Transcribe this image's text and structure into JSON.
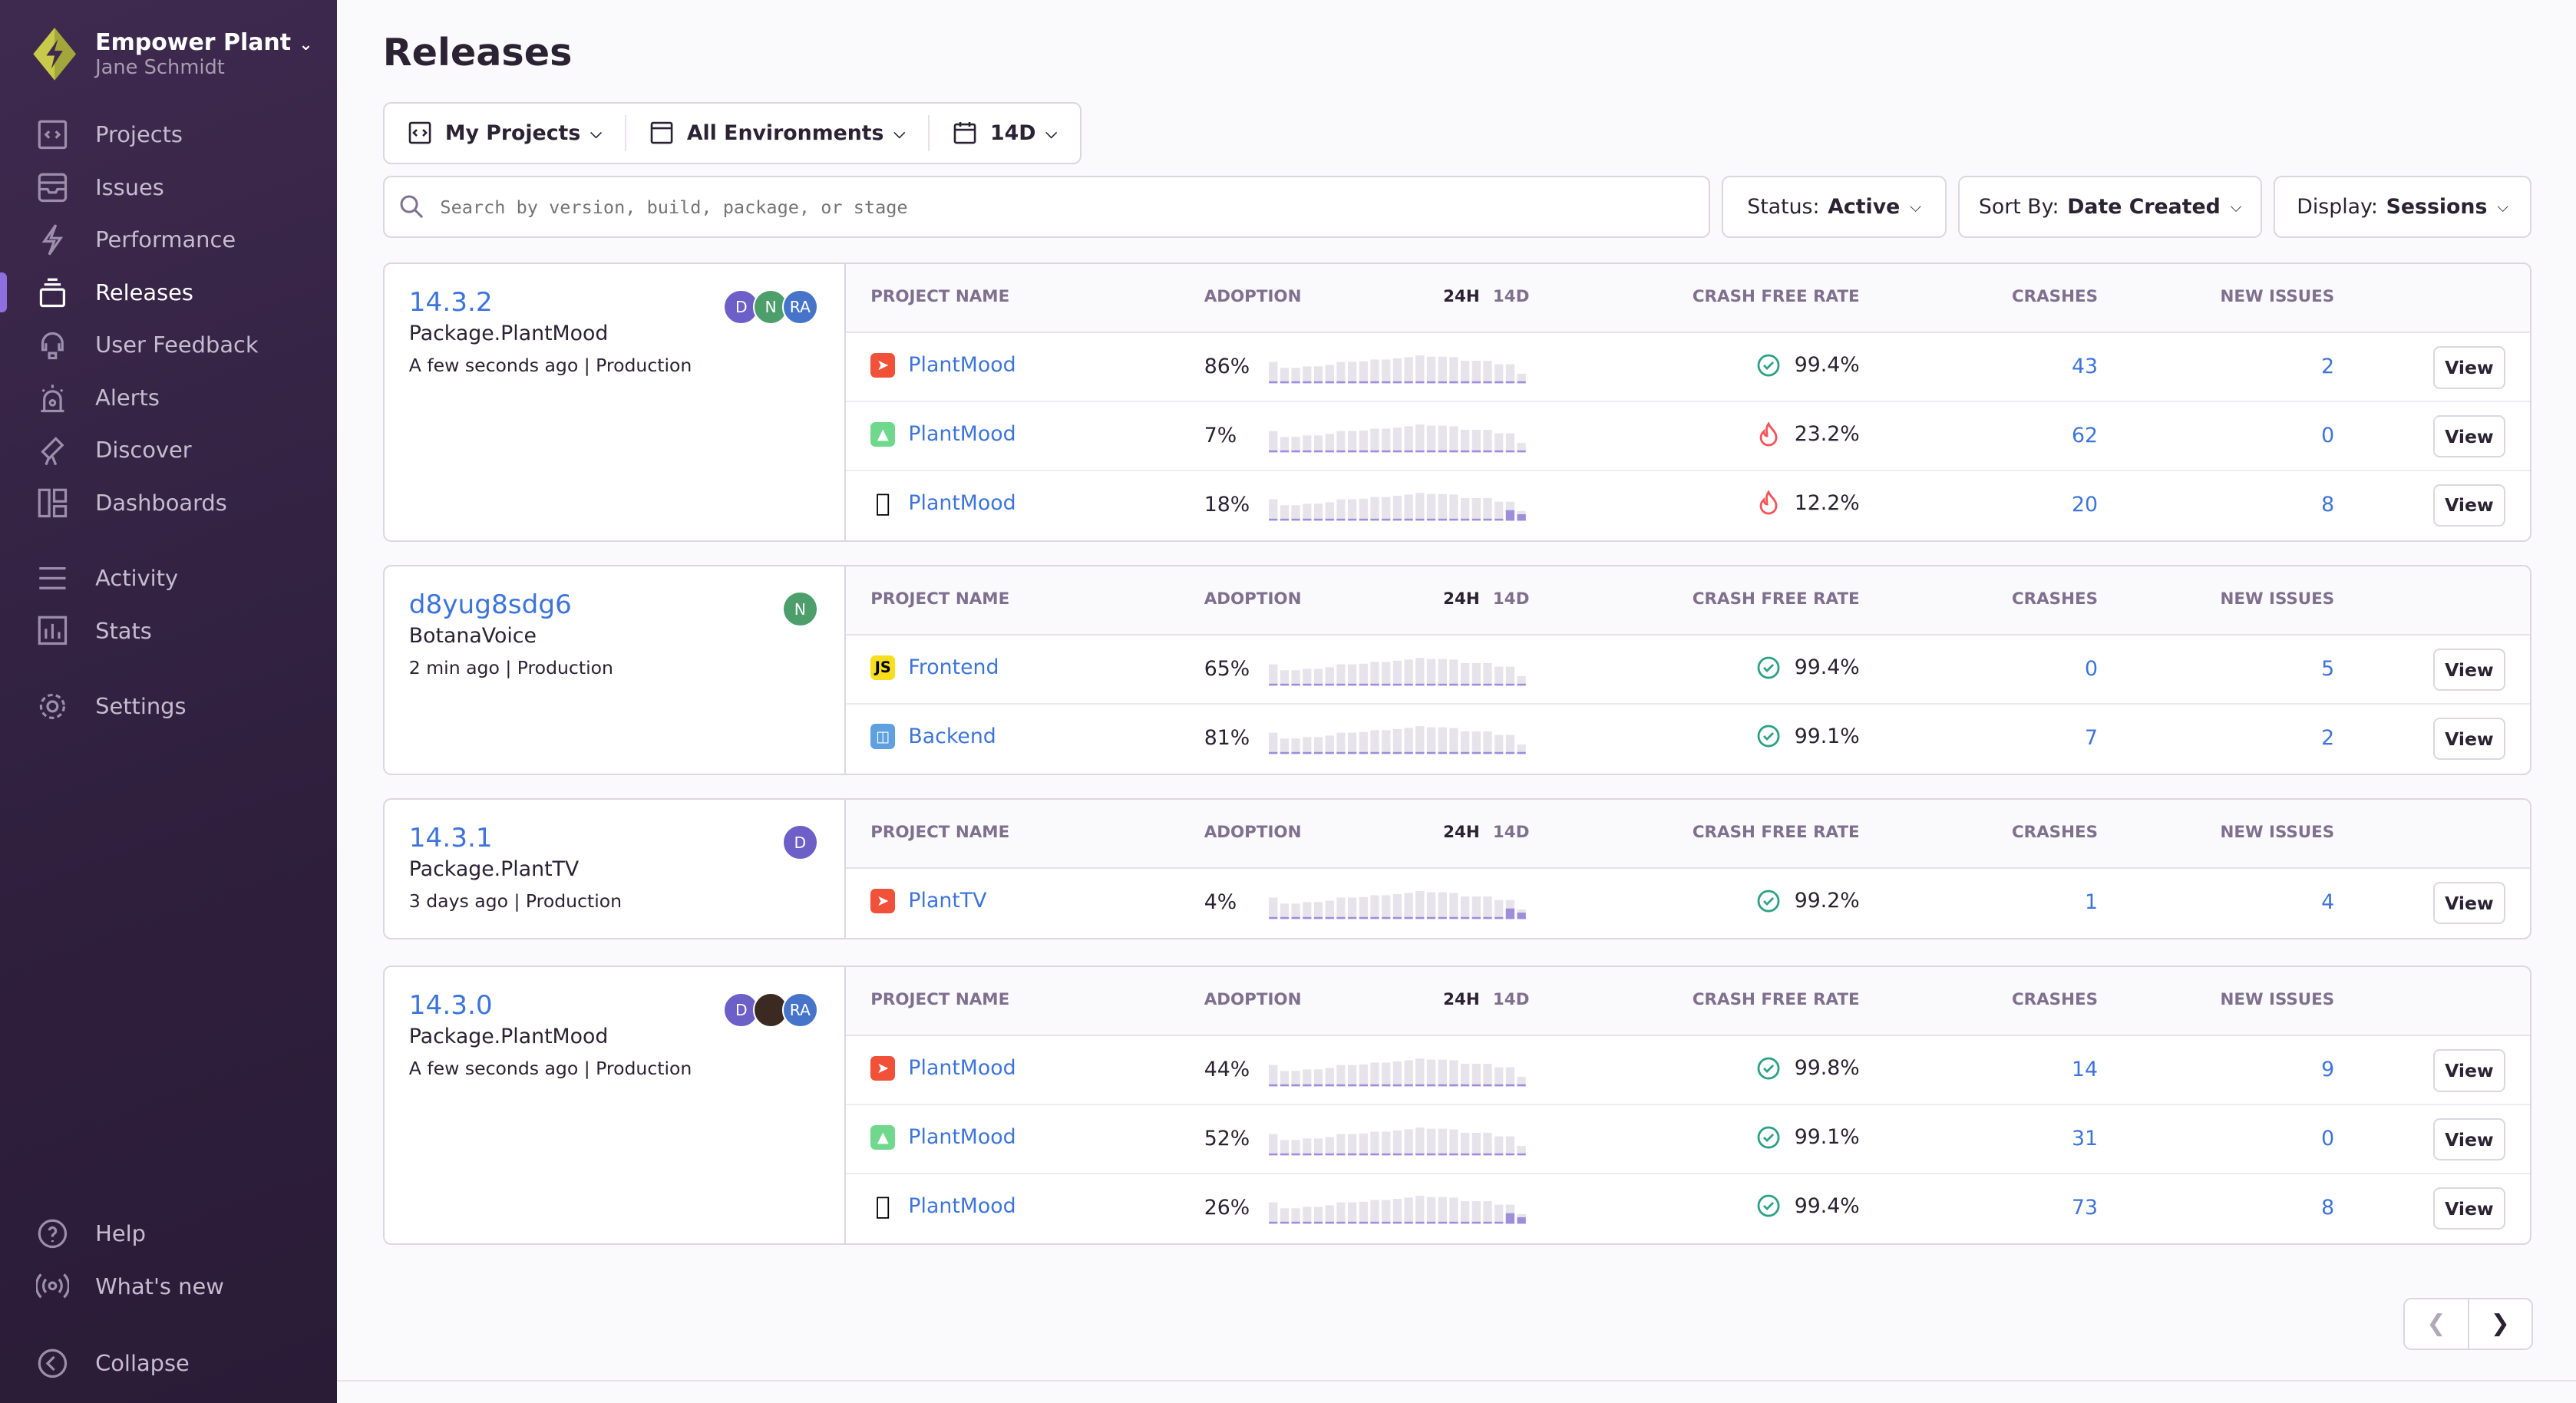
{
  "sidebar": {
    "org": "Empower Plant",
    "user": "Jane Schmidt",
    "items": [
      {
        "label": "Projects",
        "icon": "projects-icon"
      },
      {
        "label": "Issues",
        "icon": "issues-icon"
      },
      {
        "label": "Performance",
        "icon": "performance-icon"
      },
      {
        "label": "Releases",
        "icon": "releases-icon",
        "active": true
      },
      {
        "label": "User Feedback",
        "icon": "feedback-icon"
      },
      {
        "label": "Alerts",
        "icon": "alerts-icon"
      },
      {
        "label": "Discover",
        "icon": "discover-icon"
      },
      {
        "label": "Dashboards",
        "icon": "dashboards-icon"
      },
      {
        "label": "Activity",
        "icon": "activity-icon"
      },
      {
        "label": "Stats",
        "icon": "stats-icon"
      },
      {
        "label": "Settings",
        "icon": "settings-icon"
      }
    ],
    "bottom": [
      {
        "label": "Help",
        "icon": "help-icon"
      },
      {
        "label": "What's new",
        "icon": "broadcast-icon"
      },
      {
        "label": "Collapse",
        "icon": "collapse-icon"
      }
    ]
  },
  "page": {
    "title": "Releases"
  },
  "filters": {
    "projects": "My Projects",
    "environments": "All Environments",
    "period": "14D"
  },
  "search": {
    "placeholder": "Search by version, build, package, or stage"
  },
  "status": {
    "label": "Status:",
    "value": "Active"
  },
  "sort": {
    "label": "Sort By:",
    "value": "Date Created"
  },
  "display": {
    "label": "Display:",
    "value": "Sessions"
  },
  "headers": {
    "project": "PROJECT NAME",
    "adoption": "ADOPTION",
    "h24": "24H",
    "d14": "14D",
    "cfr": "CRASH FREE RATE",
    "crashes": "CRASHES",
    "new_issues": "NEW ISSUES",
    "view": "View"
  },
  "colors": {
    "accent": "#3d74db",
    "sidebar": "#2f1f3d",
    "ok": "#2ba185",
    "bad": "#f55459",
    "bar": "#e7e3eb",
    "bar_active": "#9d8ddb"
  },
  "sparkline": [
    7,
    5,
    5,
    5.5,
    5.5,
    6,
    7,
    7,
    7.2,
    7.8,
    7.8,
    8.2,
    8.6,
    9.2,
    8.8,
    8.8,
    8.6,
    7.4,
    7.4,
    7.4,
    6.2,
    6.2,
    3
  ],
  "releases": [
    {
      "version": "14.3.2",
      "package": "Package.PlantMood",
      "time": "A few seconds ago",
      "env": "Production",
      "avatars": [
        {
          "t": "D",
          "c": "#6c5fc7"
        },
        {
          "t": "N",
          "c": "#4c9e6a"
        },
        {
          "t": "RA",
          "c": "#4674ca"
        }
      ],
      "rows": [
        {
          "name": "PlantMood",
          "platform": "swift",
          "adoption": "86%",
          "cfr": "99.4%",
          "ok": true,
          "crashes": "43",
          "new": "2"
        },
        {
          "name": "PlantMood",
          "platform": "android",
          "adoption": "7%",
          "cfr": "23.2%",
          "ok": false,
          "crashes": "62",
          "new": "0"
        },
        {
          "name": "PlantMood",
          "platform": "apple",
          "adoption": "18%",
          "cfr": "12.2%",
          "ok": false,
          "crashes": "20",
          "new": "8",
          "recent": true
        }
      ]
    },
    {
      "version": "d8yug8sdg6",
      "package": "BotanaVoice",
      "time": "2 min ago",
      "env": "Production",
      "avatars": [
        {
          "t": "N",
          "c": "#4c9e6a"
        }
      ],
      "rows": [
        {
          "name": "Frontend",
          "platform": "js",
          "adoption": "65%",
          "cfr": "99.4%",
          "ok": true,
          "crashes": "0",
          "new": "5"
        },
        {
          "name": "Backend",
          "platform": "backend",
          "adoption": "81%",
          "cfr": "99.1%",
          "ok": true,
          "crashes": "7",
          "new": "2"
        }
      ]
    },
    {
      "version": "14.3.1",
      "package": "Package.PlantTV",
      "time": "3 days ago",
      "env": "Production",
      "avatars": [
        {
          "t": "D",
          "c": "#6c5fc7"
        }
      ],
      "rows": [
        {
          "name": "PlantTV",
          "platform": "swift",
          "adoption": "4%",
          "cfr": "99.2%",
          "ok": true,
          "crashes": "1",
          "new": "4",
          "recent": true
        }
      ]
    },
    {
      "version": "14.3.0",
      "package": "Package.PlantMood",
      "time": "A few seconds ago",
      "env": "Production",
      "avatars": [
        {
          "t": "D",
          "c": "#6c5fc7"
        },
        {
          "t": "",
          "c": "#3a2a22"
        },
        {
          "t": "RA",
          "c": "#4674ca"
        }
      ],
      "rows": [
        {
          "name": "PlantMood",
          "platform": "swift",
          "adoption": "44%",
          "cfr": "99.8%",
          "ok": true,
          "crashes": "14",
          "new": "9"
        },
        {
          "name": "PlantMood",
          "platform": "android",
          "adoption": "52%",
          "cfr": "99.1%",
          "ok": true,
          "crashes": "31",
          "new": "0"
        },
        {
          "name": "PlantMood",
          "platform": "apple",
          "adoption": "26%",
          "cfr": "99.4%",
          "ok": true,
          "crashes": "73",
          "new": "8",
          "recent": true
        }
      ]
    }
  ]
}
